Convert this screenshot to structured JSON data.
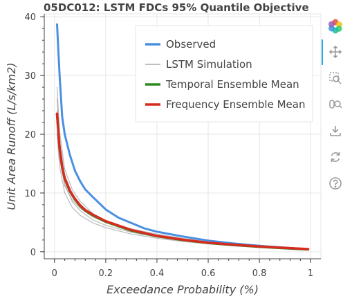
{
  "chart_data": {
    "type": "line",
    "title": "05DC012: LSTM FDCs 95% Quantile Objective",
    "xlabel": "Exceedance Probability (%)",
    "ylabel": "Unit Area Runoff (L/s/km2)",
    "xlim": [
      -0.04,
      1.04
    ],
    "ylim": [
      -1.2,
      40.5
    ],
    "xticks": [
      0,
      0.2,
      0.4,
      0.6,
      0.8,
      1
    ],
    "xtick_labels": [
      "0",
      "0.2",
      "0.4",
      "0.6",
      "0.8",
      "1"
    ],
    "yticks": [
      0,
      10,
      20,
      30,
      40
    ],
    "ytick_labels": [
      "0",
      "10",
      "20",
      "30",
      "40"
    ],
    "grid": true,
    "legend_position": "top-right",
    "legend": [
      "Observed",
      "LSTM Simulation",
      "Temporal Ensemble Mean",
      "Frequency Ensemble Mean"
    ],
    "series": [
      {
        "name": "LSTM Simulation",
        "color": "#aaaaaa",
        "role": "simulation",
        "x": [
          0.01,
          0.02,
          0.04,
          0.07,
          0.1,
          0.15,
          0.2,
          0.3,
          0.4,
          0.5,
          0.6,
          0.7,
          0.8,
          0.9,
          0.99
        ],
        "y": [
          28.0,
          20.5,
          14.0,
          10.5,
          8.6,
          6.5,
          5.3,
          3.8,
          2.7,
          2.0,
          1.5,
          1.1,
          0.8,
          0.6,
          0.35
        ]
      },
      {
        "name": "LSTM Simulation",
        "color": "#aaaaaa",
        "role": "simulation",
        "x": [
          0.01,
          0.02,
          0.04,
          0.07,
          0.1,
          0.15,
          0.2,
          0.3,
          0.4,
          0.5,
          0.6,
          0.7,
          0.8,
          0.9,
          0.99
        ],
        "y": [
          24.0,
          17.0,
          11.5,
          8.5,
          7.0,
          5.4,
          4.5,
          3.3,
          2.5,
          1.9,
          1.4,
          1.05,
          0.8,
          0.55,
          0.3
        ]
      },
      {
        "name": "LSTM Simulation",
        "color": "#aaaaaa",
        "role": "simulation",
        "x": [
          0.01,
          0.02,
          0.04,
          0.07,
          0.1,
          0.15,
          0.2,
          0.3,
          0.4,
          0.5,
          0.6,
          0.7,
          0.8,
          0.9,
          0.99
        ],
        "y": [
          20.0,
          14.5,
          10.0,
          7.5,
          6.2,
          4.9,
          4.1,
          3.0,
          2.3,
          1.75,
          1.35,
          1.0,
          0.75,
          0.5,
          0.3
        ]
      },
      {
        "name": "LSTM Simulation",
        "color": "#aaaaaa",
        "role": "simulation",
        "x": [
          0.01,
          0.02,
          0.04,
          0.07,
          0.1,
          0.15,
          0.2,
          0.3,
          0.4,
          0.5,
          0.6,
          0.7,
          0.8,
          0.9,
          0.99
        ],
        "y": [
          22.5,
          16.0,
          11.2,
          8.8,
          7.4,
          5.9,
          5.0,
          3.9,
          3.0,
          2.3,
          1.7,
          1.25,
          0.9,
          0.65,
          0.4
        ]
      },
      {
        "name": "LSTM Simulation",
        "color": "#aaaaaa",
        "role": "simulation",
        "x": [
          0.01,
          0.02,
          0.04,
          0.07,
          0.1,
          0.15,
          0.2,
          0.3,
          0.4,
          0.5,
          0.6,
          0.7,
          0.8,
          0.9,
          0.99
        ],
        "y": [
          26.0,
          19.0,
          13.0,
          9.8,
          8.0,
          6.2,
          5.1,
          3.7,
          2.8,
          2.15,
          1.6,
          1.2,
          0.85,
          0.6,
          0.35
        ]
      },
      {
        "name": "Observed",
        "color": "#4a90e2",
        "width": 3,
        "x": [
          0.01,
          0.02,
          0.03,
          0.04,
          0.06,
          0.08,
          0.1,
          0.12,
          0.15,
          0.2,
          0.25,
          0.3,
          0.35,
          0.4,
          0.5,
          0.6,
          0.7,
          0.8,
          0.9,
          0.99
        ],
        "y": [
          38.7,
          30.0,
          23.0,
          20.0,
          16.5,
          13.8,
          12.0,
          10.6,
          9.3,
          7.2,
          5.8,
          4.9,
          4.0,
          3.4,
          2.6,
          1.9,
          1.4,
          1.0,
          0.7,
          0.4
        ]
      },
      {
        "name": "Temporal Ensemble Mean",
        "color": "#2e8b1f",
        "width": 3.5,
        "x": [
          0.01,
          0.02,
          0.03,
          0.04,
          0.06,
          0.08,
          0.1,
          0.12,
          0.15,
          0.2,
          0.3,
          0.4,
          0.5,
          0.6,
          0.7,
          0.8,
          0.9,
          0.99
        ],
        "y": [
          23.4,
          17.5,
          14.3,
          12.4,
          10.3,
          8.9,
          7.8,
          7.0,
          6.2,
          5.1,
          3.6,
          2.65,
          2.0,
          1.5,
          1.15,
          0.85,
          0.6,
          0.4
        ]
      },
      {
        "name": "Frequency Ensemble Mean",
        "color": "#d62c20",
        "width": 3.5,
        "x": [
          0.01,
          0.02,
          0.03,
          0.04,
          0.06,
          0.08,
          0.1,
          0.12,
          0.15,
          0.2,
          0.3,
          0.4,
          0.5,
          0.6,
          0.7,
          0.8,
          0.9,
          0.99
        ],
        "y": [
          23.5,
          17.6,
          14.4,
          12.5,
          10.4,
          9.0,
          7.9,
          7.1,
          6.3,
          5.2,
          3.7,
          2.7,
          2.05,
          1.55,
          1.2,
          0.9,
          0.65,
          0.45
        ]
      }
    ]
  },
  "legend_colors": {
    "Observed": "#4a90e2",
    "LSTM Simulation": "#aaaaaa",
    "Temporal Ensemble Mean": "#2e8b1f",
    "Frequency Ensemble Mean": "#d62c20"
  },
  "toolbar": {
    "tools": [
      "bokeh-logo-icon",
      "pan-icon",
      "box-zoom-icon",
      "wheel-zoom-icon",
      "save-icon",
      "reset-icon",
      "help-icon"
    ]
  }
}
